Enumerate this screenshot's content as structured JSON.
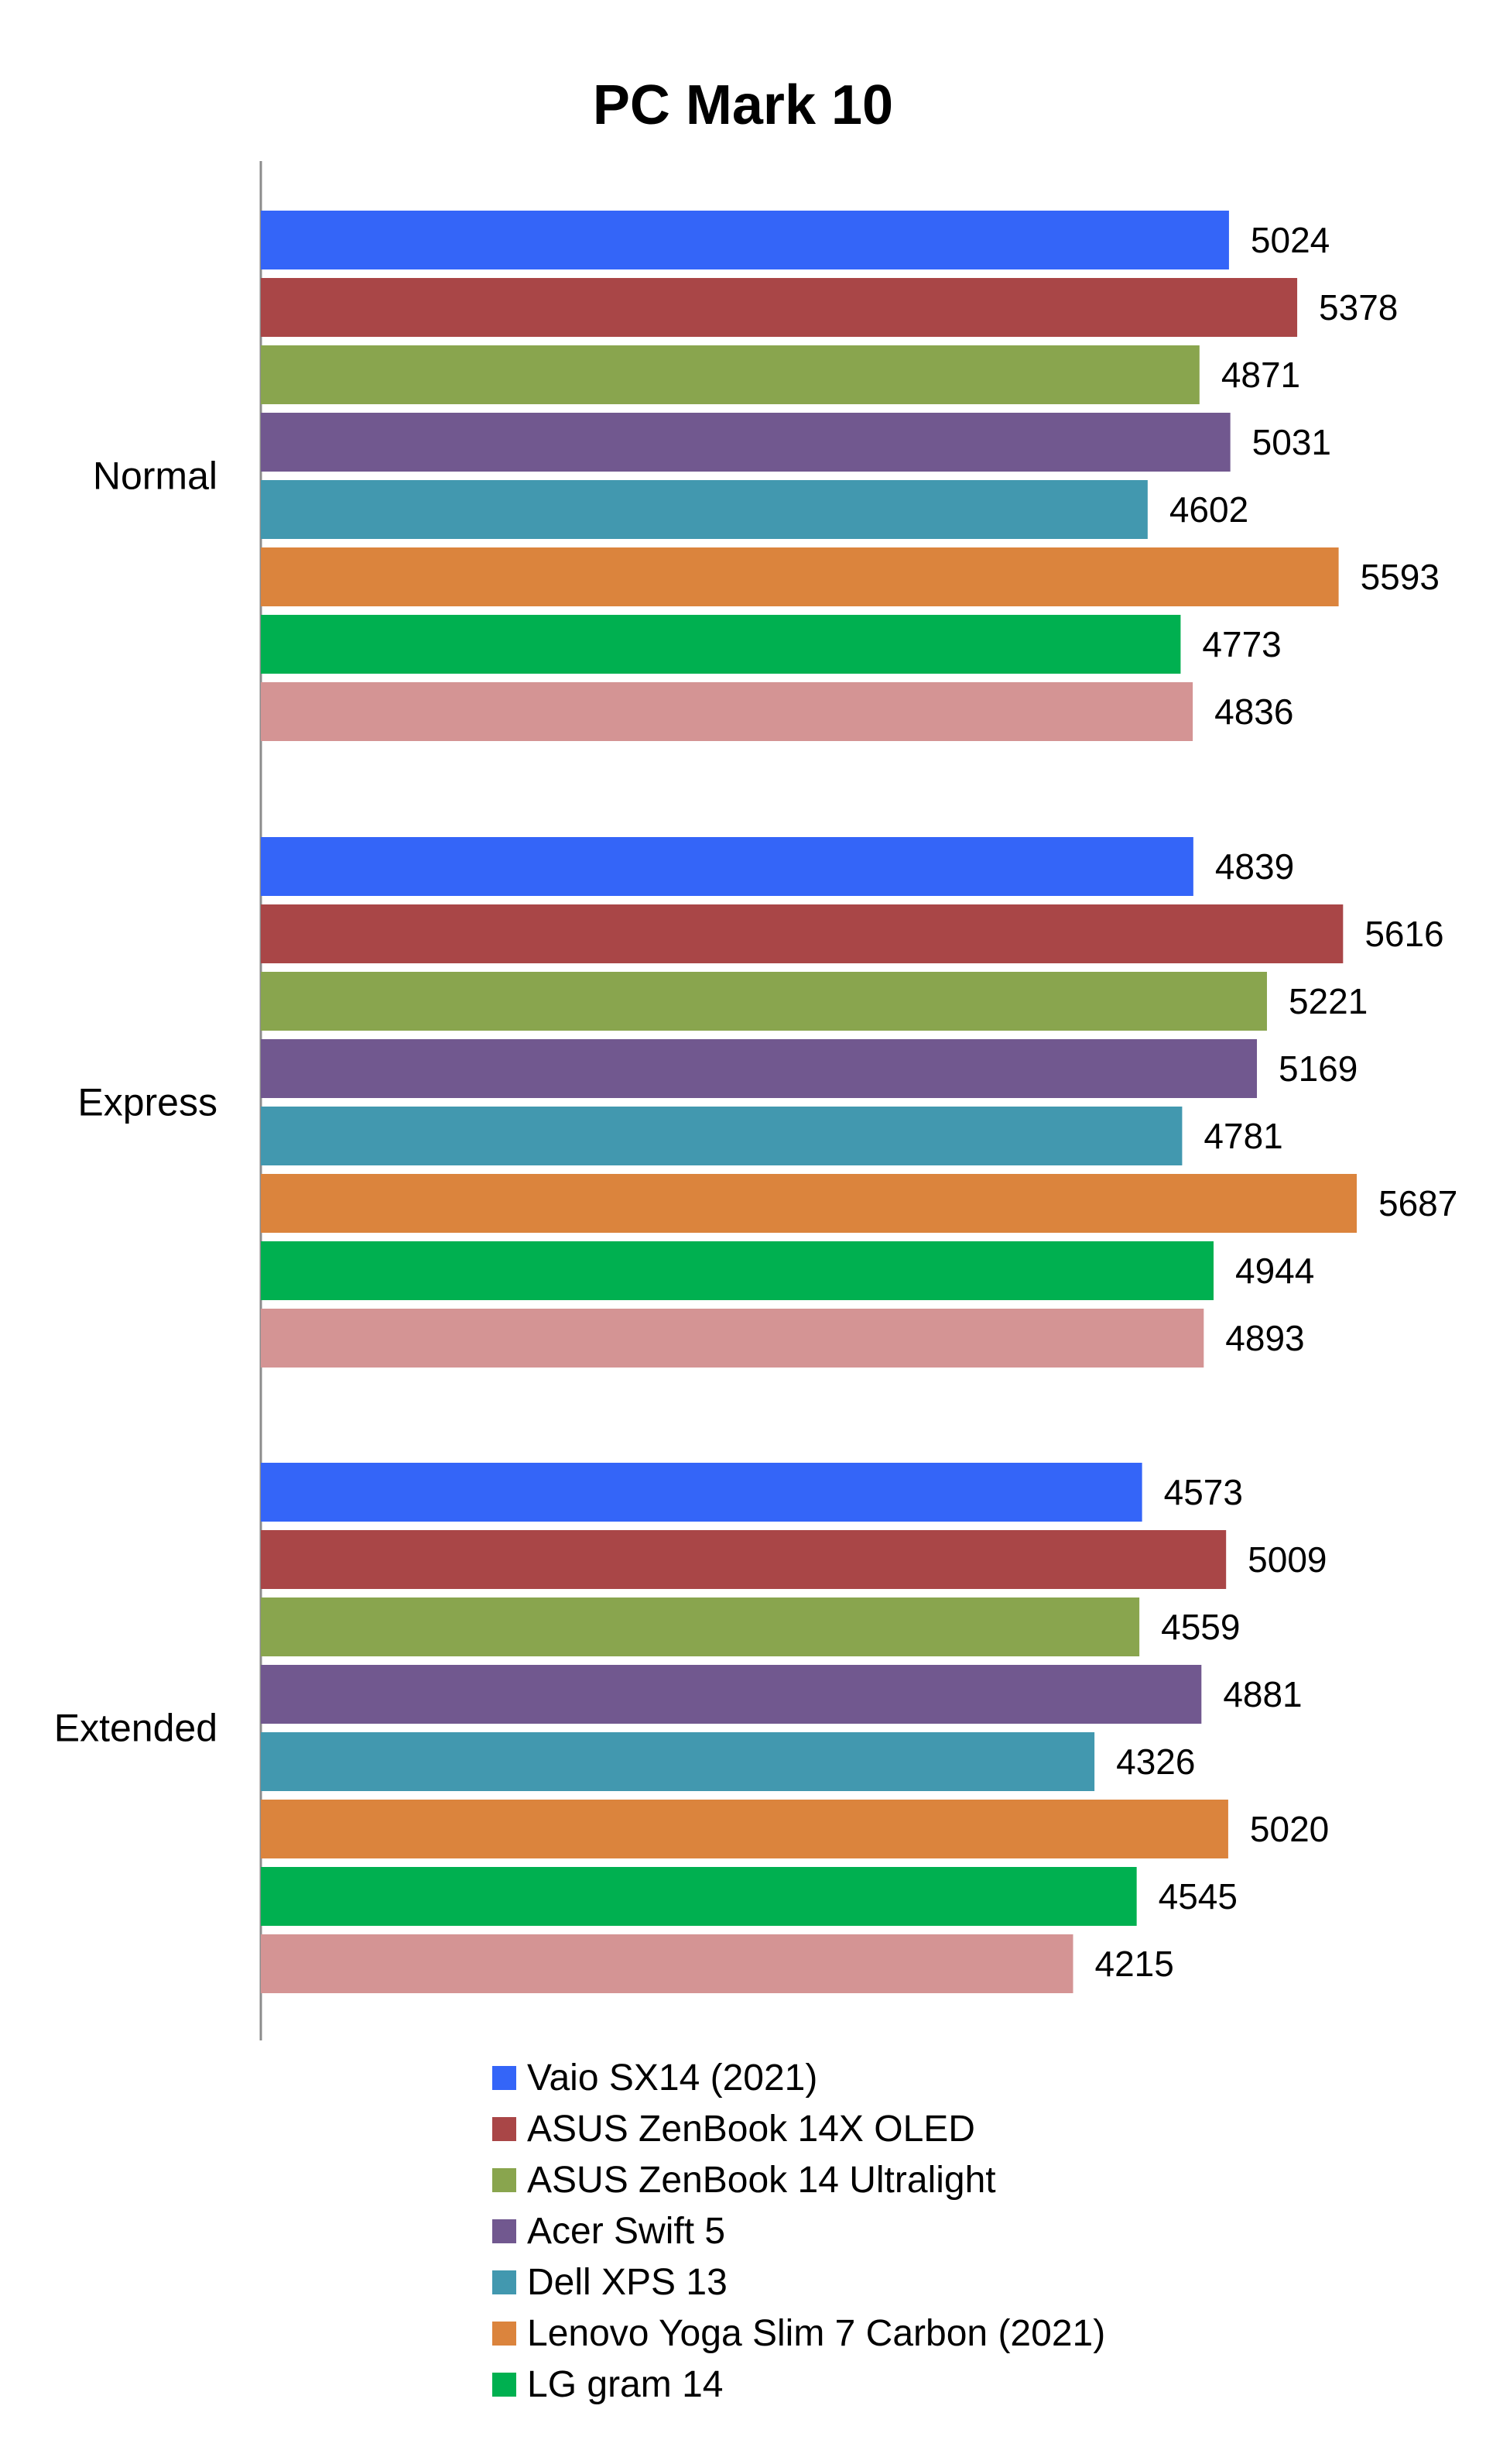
{
  "chart_data": {
    "type": "bar",
    "orientation": "horizontal",
    "title": "PC Mark 10",
    "xlabel": "",
    "ylabel": "",
    "xlim": [
      0,
      5800
    ],
    "grid": false,
    "legend_position": "bottom",
    "categories": [
      "Normal",
      "Express",
      "Extended"
    ],
    "series": [
      {
        "name": "Vaio SX14 (2021)",
        "color": "#3465f8",
        "values": [
          5024,
          4839,
          4573
        ]
      },
      {
        "name": "ASUS ZenBook 14X OLED",
        "color": "#a94647",
        "values": [
          5378,
          5616,
          5009
        ]
      },
      {
        "name": "ASUS ZenBook 14 Ultralight",
        "color": "#89a54e",
        "values": [
          4871,
          5221,
          4559
        ]
      },
      {
        "name": "Acer Swift 5",
        "color": "#71588f",
        "values": [
          5031,
          5169,
          4881
        ]
      },
      {
        "name": "Dell XPS 13",
        "color": "#4298af",
        "values": [
          4602,
          4781,
          4326
        ]
      },
      {
        "name": "Lenovo Yoga Slim 7 Carbon (2021)",
        "color": "#db843d",
        "values": [
          5593,
          5687,
          5020
        ]
      },
      {
        "name": "LG gram 14",
        "color": "#00b050",
        "values": [
          4773,
          4944,
          4545
        ]
      },
      {
        "name": "",
        "color": "#d49494",
        "values": [
          4836,
          4893,
          4215
        ]
      }
    ]
  }
}
